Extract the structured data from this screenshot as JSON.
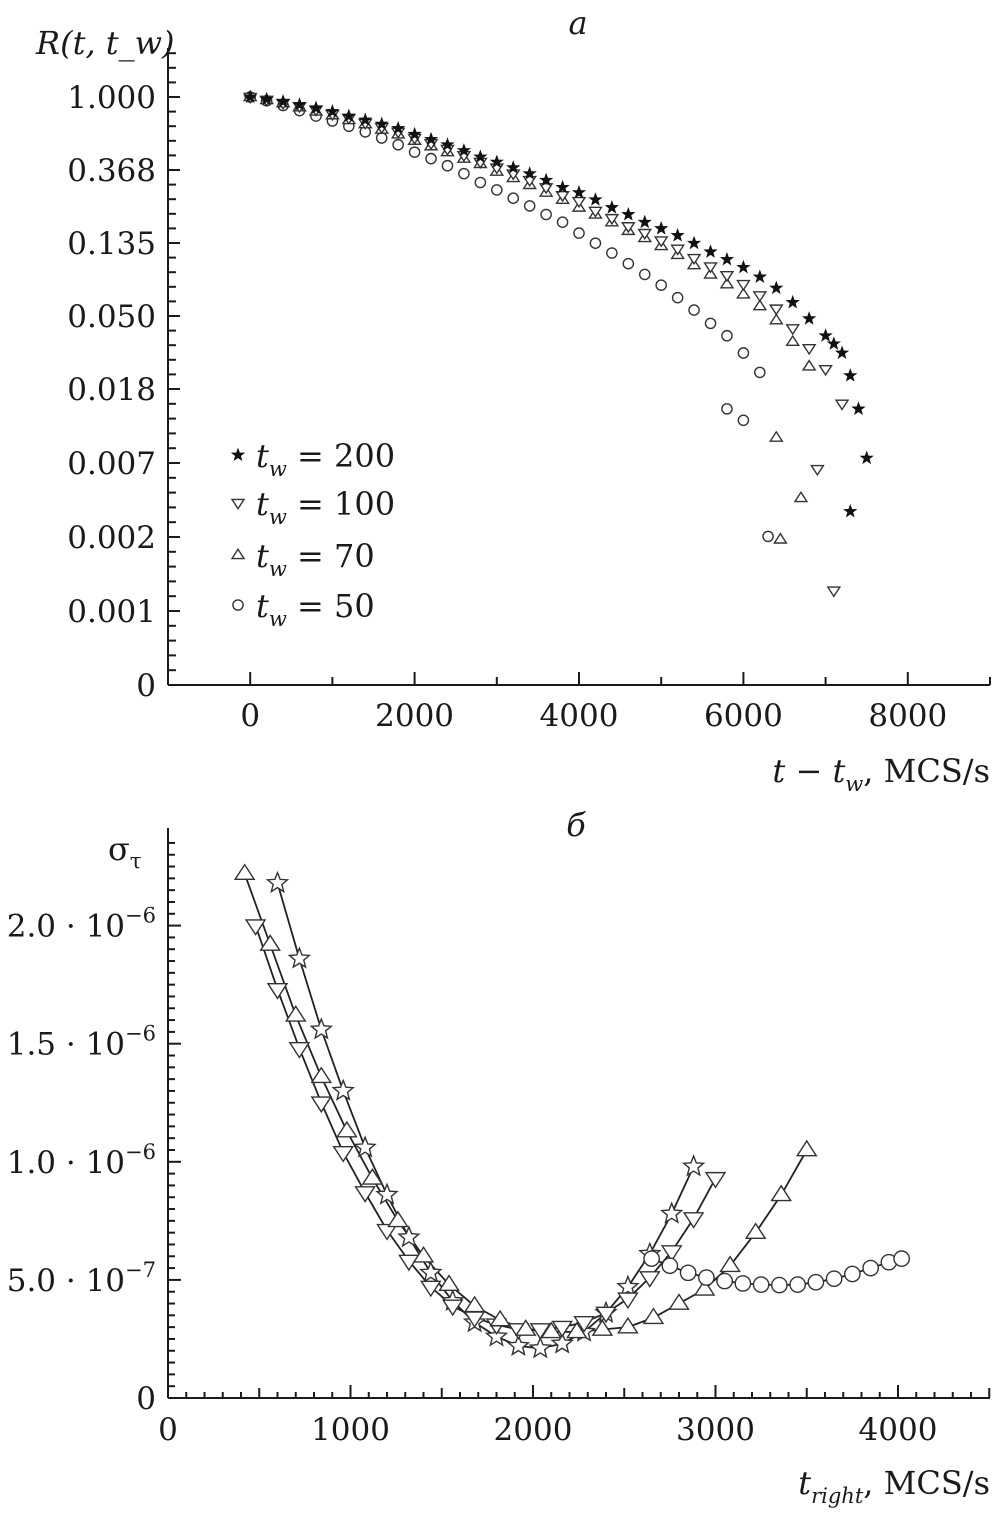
{
  "chart_data": [
    {
      "type": "scatter",
      "title": "a",
      "xlabel_main": "t − t",
      "xlabel_sub": "w",
      "xlabel_unit": ", MCS/s",
      "ylabel": "R(t, t_w)",
      "x_ticks": [
        "0",
        "2000",
        "4000",
        "6000",
        "8000"
      ],
      "y_ticks": [
        "1.000",
        "0.368",
        "0.135",
        "0.050",
        "0.018",
        "0.007",
        "0.002",
        "0.001",
        "0"
      ],
      "xlim": [
        -1000,
        9000
      ],
      "y_scale": "log",
      "legend_position": "lower-left",
      "series": [
        {
          "name": "t_w = 200",
          "legend_prefix": "t",
          "legend_sub": "w",
          "legend_value": " = 200",
          "marker": "filled-star",
          "points": [
            [
              0,
              1.0
            ],
            [
              200,
              0.97
            ],
            [
              400,
              0.94
            ],
            [
              600,
              0.9
            ],
            [
              800,
              0.86
            ],
            [
              1000,
              0.82
            ],
            [
              1200,
              0.77
            ],
            [
              1400,
              0.73
            ],
            [
              1600,
              0.69
            ],
            [
              1800,
              0.65
            ],
            [
              2000,
              0.6
            ],
            [
              2200,
              0.56
            ],
            [
              2400,
              0.52
            ],
            [
              2600,
              0.48
            ],
            [
              2800,
              0.44
            ],
            [
              3000,
              0.41
            ],
            [
              3200,
              0.38
            ],
            [
              3400,
              0.35
            ],
            [
              3600,
              0.32
            ],
            [
              3800,
              0.29
            ],
            [
              4000,
              0.27
            ],
            [
              4200,
              0.245
            ],
            [
              4400,
              0.22
            ],
            [
              4600,
              0.2
            ],
            [
              4800,
              0.18
            ],
            [
              5000,
              0.165
            ],
            [
              5200,
              0.15
            ],
            [
              5400,
              0.135
            ],
            [
              5600,
              0.12
            ],
            [
              5800,
              0.108
            ],
            [
              6000,
              0.097
            ],
            [
              6200,
              0.085
            ],
            [
              6400,
              0.073
            ],
            [
              6600,
              0.06
            ],
            [
              6800,
              0.048
            ],
            [
              7000,
              0.038
            ],
            [
              7100,
              0.034
            ],
            [
              7200,
              0.03
            ],
            [
              7300,
              0.022
            ],
            [
              7400,
              0.014
            ],
            [
              7500,
              0.0072
            ],
            [
              7300,
              0.0035
            ]
          ]
        },
        {
          "name": "t_w = 100",
          "legend_prefix": "t",
          "legend_sub": "w",
          "legend_value": " = 100",
          "marker": "triangle-down",
          "points": [
            [
              0,
              1.0
            ],
            [
              200,
              0.96
            ],
            [
              400,
              0.92
            ],
            [
              600,
              0.88
            ],
            [
              800,
              0.84
            ],
            [
              1000,
              0.79
            ],
            [
              1200,
              0.75
            ],
            [
              1400,
              0.7
            ],
            [
              1600,
              0.66
            ],
            [
              1800,
              0.62
            ],
            [
              2000,
              0.57
            ],
            [
              2200,
              0.53
            ],
            [
              2400,
              0.49
            ],
            [
              2600,
              0.45
            ],
            [
              2800,
              0.41
            ],
            [
              3000,
              0.38
            ],
            [
              3200,
              0.35
            ],
            [
              3400,
              0.32
            ],
            [
              3600,
              0.29
            ],
            [
              3800,
              0.26
            ],
            [
              4000,
              0.24
            ],
            [
              4200,
              0.21
            ],
            [
              4400,
              0.19
            ],
            [
              4600,
              0.17
            ],
            [
              4800,
              0.155
            ],
            [
              5000,
              0.14
            ],
            [
              5200,
              0.125
            ],
            [
              5400,
              0.11
            ],
            [
              5600,
              0.098
            ],
            [
              5800,
              0.087
            ],
            [
              6000,
              0.077
            ],
            [
              6200,
              0.066
            ],
            [
              6400,
              0.055
            ],
            [
              6600,
              0.042
            ],
            [
              6800,
              0.032
            ],
            [
              7000,
              0.024
            ],
            [
              7200,
              0.015
            ],
            [
              6900,
              0.0062
            ],
            [
              7100,
              0.0012
            ]
          ]
        },
        {
          "name": "t_w = 70",
          "legend_prefix": "t",
          "legend_sub": "w",
          "legend_value": " = 70",
          "marker": "triangle-up",
          "points": [
            [
              0,
              1.0
            ],
            [
              200,
              0.96
            ],
            [
              400,
              0.92
            ],
            [
              600,
              0.87
            ],
            [
              800,
              0.82
            ],
            [
              1000,
              0.78
            ],
            [
              1200,
              0.73
            ],
            [
              1400,
              0.69
            ],
            [
              1600,
              0.64
            ],
            [
              1800,
              0.6
            ],
            [
              2000,
              0.55
            ],
            [
              2200,
              0.51
            ],
            [
              2400,
              0.47
            ],
            [
              2600,
              0.43
            ],
            [
              2800,
              0.4
            ],
            [
              3000,
              0.36
            ],
            [
              3200,
              0.33
            ],
            [
              3400,
              0.3
            ],
            [
              3600,
              0.27
            ],
            [
              3800,
              0.245
            ],
            [
              4000,
              0.22
            ],
            [
              4200,
              0.2
            ],
            [
              4400,
              0.18
            ],
            [
              4600,
              0.16
            ],
            [
              4800,
              0.145
            ],
            [
              5000,
              0.13
            ],
            [
              5200,
              0.115
            ],
            [
              5400,
              0.1
            ],
            [
              5600,
              0.088
            ],
            [
              5800,
              0.077
            ],
            [
              6000,
              0.067
            ],
            [
              6200,
              0.057
            ],
            [
              6400,
              0.047
            ],
            [
              6600,
              0.035
            ],
            [
              6800,
              0.025
            ],
            [
              6400,
              0.0095
            ],
            [
              6700,
              0.0042
            ],
            [
              6450,
              0.0024
            ]
          ]
        },
        {
          "name": "t_w = 50",
          "legend_prefix": "t",
          "legend_sub": "w",
          "legend_value": " = 50",
          "marker": "circle",
          "points": [
            [
              0,
              1.0
            ],
            [
              200,
              0.95
            ],
            [
              400,
              0.89
            ],
            [
              600,
              0.83
            ],
            [
              800,
              0.77
            ],
            [
              1000,
              0.72
            ],
            [
              1200,
              0.67
            ],
            [
              1400,
              0.62
            ],
            [
              1600,
              0.57
            ],
            [
              1800,
              0.52
            ],
            [
              2000,
              0.47
            ],
            [
              2200,
              0.43
            ],
            [
              2400,
              0.39
            ],
            [
              2600,
              0.35
            ],
            [
              2800,
              0.31
            ],
            [
              3000,
              0.28
            ],
            [
              3200,
              0.25
            ],
            [
              3400,
              0.225
            ],
            [
              3600,
              0.2
            ],
            [
              3800,
              0.18
            ],
            [
              4000,
              0.155
            ],
            [
              4200,
              0.135
            ],
            [
              4400,
              0.118
            ],
            [
              4600,
              0.102
            ],
            [
              4800,
              0.088
            ],
            [
              5000,
              0.076
            ],
            [
              5200,
              0.064
            ],
            [
              5400,
              0.054
            ],
            [
              5600,
              0.045
            ],
            [
              5800,
              0.038
            ],
            [
              6000,
              0.03
            ],
            [
              6200,
              0.023
            ],
            [
              5800,
              0.014
            ],
            [
              6000,
              0.012
            ],
            [
              6300,
              0.0025
            ]
          ]
        }
      ]
    },
    {
      "type": "line",
      "title": "б",
      "xlabel_main": "t",
      "xlabel_sub": "right",
      "xlabel_unit": ", MCS/s",
      "ylabel": "σ",
      "ylabel_sub": "τ",
      "x_ticks": [
        "0",
        "1000",
        "2000",
        "3000",
        "4000"
      ],
      "y_ticks": [
        {
          "mantissa": "0",
          "exp": ""
        },
        {
          "mantissa": "5.0 · 10",
          "exp": "−7"
        },
        {
          "mantissa": "1.0 · 10",
          "exp": "−6"
        },
        {
          "mantissa": "1.5 · 10",
          "exp": "−6"
        },
        {
          "mantissa": "2.0 · 10",
          "exp": "−6"
        }
      ],
      "xlim": [
        0,
        4500
      ],
      "ylim": [
        0,
        2.4e-06
      ],
      "series": [
        {
          "marker": "star",
          "points": [
            [
              600,
              2.18e-06
            ],
            [
              720,
              1.86e-06
            ],
            [
              840,
              1.56e-06
            ],
            [
              960,
              1.3e-06
            ],
            [
              1080,
              1.06e-06
            ],
            [
              1200,
              8.6e-07
            ],
            [
              1320,
              6.8e-07
            ],
            [
              1440,
              5.3e-07
            ],
            [
              1560,
              4.1e-07
            ],
            [
              1680,
              3.2e-07
            ],
            [
              1800,
              2.6e-07
            ],
            [
              1920,
              2.2e-07
            ],
            [
              2040,
              2.1e-07
            ],
            [
              2160,
              2.3e-07
            ],
            [
              2280,
              2.8e-07
            ],
            [
              2400,
              3.6e-07
            ],
            [
              2520,
              4.7e-07
            ],
            [
              2640,
              6.1e-07
            ],
            [
              2760,
              7.8e-07
            ],
            [
              2880,
              9.8e-07
            ]
          ]
        },
        {
          "marker": "triangle-down",
          "points": [
            [
              480,
              2e-06
            ],
            [
              600,
              1.73e-06
            ],
            [
              720,
              1.48e-06
            ],
            [
              840,
              1.25e-06
            ],
            [
              960,
              1.04e-06
            ],
            [
              1080,
              8.7e-07
            ],
            [
              1200,
              7.1e-07
            ],
            [
              1320,
              5.8e-07
            ],
            [
              1440,
              4.7e-07
            ],
            [
              1560,
              3.9e-07
            ],
            [
              1680,
              3.4e-07
            ],
            [
              1800,
              3.1e-07
            ],
            [
              1920,
              2.9e-07
            ],
            [
              2040,
              2.9e-07
            ],
            [
              2160,
              3e-07
            ],
            [
              2280,
              3.2e-07
            ],
            [
              2400,
              3.6e-07
            ],
            [
              2520,
              4.2e-07
            ],
            [
              2640,
              5.1e-07
            ],
            [
              2760,
              6.2e-07
            ],
            [
              2880,
              7.6e-07
            ],
            [
              3000,
              9.3e-07
            ]
          ]
        },
        {
          "marker": "triangle-up",
          "points": [
            [
              420,
              2.22e-06
            ],
            [
              560,
              1.92e-06
            ],
            [
              700,
              1.62e-06
            ],
            [
              840,
              1.36e-06
            ],
            [
              980,
              1.13e-06
            ],
            [
              1120,
              9.3e-07
            ],
            [
              1260,
              7.5e-07
            ],
            [
              1400,
              6e-07
            ],
            [
              1540,
              4.8e-07
            ],
            [
              1680,
              3.9e-07
            ],
            [
              1820,
              3.3e-07
            ],
            [
              1960,
              2.9e-07
            ],
            [
              2100,
              2.8e-07
            ],
            [
              2240,
              2.8e-07
            ],
            [
              2380,
              2.9e-07
            ],
            [
              2520,
              3e-07
            ],
            [
              2660,
              3.4e-07
            ],
            [
              2800,
              4e-07
            ],
            [
              2940,
              4.6e-07
            ],
            [
              3080,
              5.6e-07
            ],
            [
              3220,
              7e-07
            ],
            [
              3360,
              8.6e-07
            ],
            [
              3500,
              1.05e-06
            ]
          ]
        },
        {
          "marker": "circle",
          "points": [
            [
              2650,
              5.9e-07
            ],
            [
              2750,
              5.6e-07
            ],
            [
              2850,
              5.3e-07
            ],
            [
              2950,
              5.1e-07
            ],
            [
              3050,
              4.95e-07
            ],
            [
              3150,
              4.85e-07
            ],
            [
              3250,
              4.8e-07
            ],
            [
              3350,
              4.78e-07
            ],
            [
              3450,
              4.8e-07
            ],
            [
              3550,
              4.9e-07
            ],
            [
              3650,
              5.05e-07
            ],
            [
              3750,
              5.25e-07
            ],
            [
              3850,
              5.5e-07
            ],
            [
              3950,
              5.75e-07
            ],
            [
              4020,
              5.9e-07
            ]
          ]
        }
      ]
    }
  ]
}
